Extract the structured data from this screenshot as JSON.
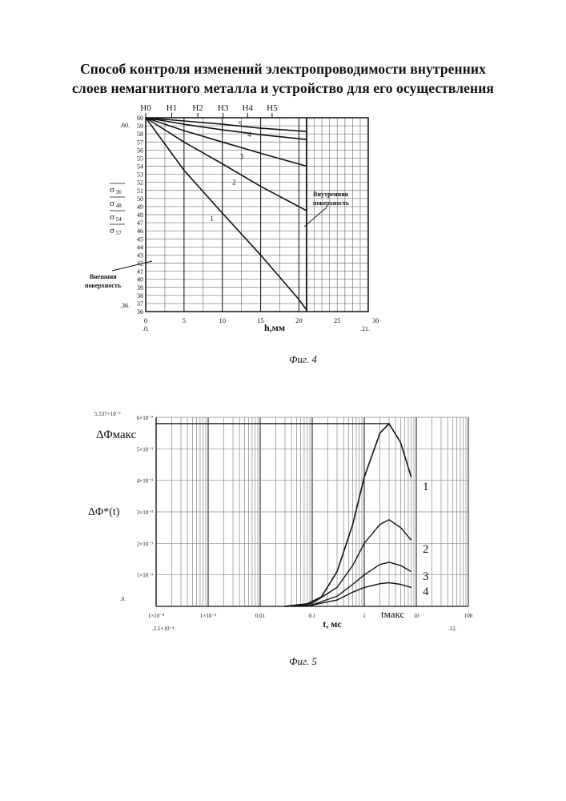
{
  "title": {
    "line1": "Способ контроля изменений электропроводимости внутренних",
    "line2": "слоев немагнитного металла  и устройство для его осуществления"
  },
  "figure4": {
    "caption": "Фиг. 4",
    "top_labels": [
      "H0",
      "H1",
      "H2",
      "H3",
      "H4",
      "H5"
    ],
    "y_ticks": [
      36,
      37,
      38,
      39,
      40,
      41,
      42,
      43,
      44,
      45,
      46,
      47,
      48,
      49,
      50,
      51,
      52,
      53,
      54,
      55,
      56,
      57,
      58,
      59,
      60
    ],
    "x_ticks": [
      "0",
      "5",
      "10",
      "15",
      "20",
      "25",
      "30"
    ],
    "xlabel": "h,мм",
    "ylabels": [
      "σ_36",
      "σ_48",
      "σ_54",
      "σ_57"
    ],
    "corner_labels": {
      "top_left": ".60.",
      "bottom_left": ".36.",
      "origin": ".0.",
      "x_end": ".21."
    },
    "annotation_inner": [
      "Внутренняя",
      "поверхность"
    ],
    "annotation_outer": [
      "Внешняя",
      "поверхность"
    ],
    "curve_labels": [
      "1",
      "2",
      "3",
      "4",
      "5"
    ]
  },
  "figure5": {
    "caption": "Фиг. 5",
    "y_ticks": [
      "1×10⁻³",
      "2×10⁻³",
      "3×10⁻³",
      "4×10⁻³",
      "5×10⁻³",
      "6×10⁻³"
    ],
    "x_ticks": [
      "1×10⁻⁴",
      "1×10⁻³",
      "0.01",
      "0.1",
      "1",
      "10",
      "100"
    ],
    "xlabel": "t, мс",
    "ylabel": "ΔΦ*(t)",
    "peak_label": "ΔΦмакс",
    "tmax_label": "tмакс",
    "corner_labels": {
      "top_left": "5.537×10⁻³",
      "origin": ".0.",
      "x_left": ".2.5×10⁻⁴.",
      "x_right": ".12."
    },
    "curve_labels": [
      "1",
      "2",
      "3",
      "4"
    ]
  },
  "chart_data": [
    {
      "type": "line",
      "xlabel": "h,мм",
      "xlim": [
        0,
        30
      ],
      "ylim": [
        36,
        60
      ],
      "grid": true,
      "series": [
        {
          "name": "1",
          "x": [
            0,
            5,
            10,
            15,
            20,
            21
          ],
          "y": [
            60,
            53.5,
            48.2,
            43,
            37.5,
            36.2
          ]
        },
        {
          "name": "2",
          "x": [
            0,
            5,
            10,
            15,
            21
          ],
          "y": [
            60,
            57,
            54.3,
            51.5,
            48.5
          ]
        },
        {
          "name": "3",
          "x": [
            0,
            5,
            10,
            15,
            21
          ],
          "y": [
            60,
            58.4,
            57,
            55.6,
            54
          ]
        },
        {
          "name": "4",
          "x": [
            0,
            5,
            10,
            15,
            21
          ],
          "y": [
            60,
            59.2,
            58.5,
            57.9,
            57.3
          ]
        },
        {
          "name": "5",
          "x": [
            0,
            5,
            10,
            15,
            21
          ],
          "y": [
            60,
            59.6,
            59.2,
            58.7,
            58.3
          ]
        }
      ]
    },
    {
      "type": "line",
      "xlabel": "t, мс",
      "ylabel": "ΔΦ*(t)",
      "xscale": "log",
      "xlim": [
        0.0001,
        100
      ],
      "ylim": [
        0,
        0.006
      ],
      "grid": true,
      "series": [
        {
          "name": "1",
          "x": [
            0.03,
            0.08,
            0.15,
            0.3,
            0.6,
            1,
            2,
            3,
            5,
            8
          ],
          "y": [
            0,
            8e-05,
            0.0003,
            0.0011,
            0.0026,
            0.0041,
            0.0055,
            0.0058,
            0.0052,
            0.0041
          ]
        },
        {
          "name": "2",
          "x": [
            0.03,
            0.1,
            0.3,
            0.6,
            1,
            2,
            3,
            5,
            8
          ],
          "y": [
            0,
            0.0001,
            0.0006,
            0.0013,
            0.002,
            0.0026,
            0.00275,
            0.0025,
            0.0021
          ]
        },
        {
          "name": "3",
          "x": [
            0.03,
            0.1,
            0.3,
            0.6,
            1,
            2,
            3,
            5,
            8
          ],
          "y": [
            0,
            5e-05,
            0.00032,
            0.0007,
            0.001,
            0.00133,
            0.0014,
            0.0013,
            0.0011
          ]
        },
        {
          "name": "4",
          "x": [
            0.03,
            0.1,
            0.3,
            0.6,
            1,
            2,
            3,
            5,
            8
          ],
          "y": [
            0,
            4e-05,
            0.0002,
            0.00045,
            0.0006,
            0.00072,
            0.00075,
            0.0007,
            0.0006
          ]
        }
      ]
    }
  ]
}
